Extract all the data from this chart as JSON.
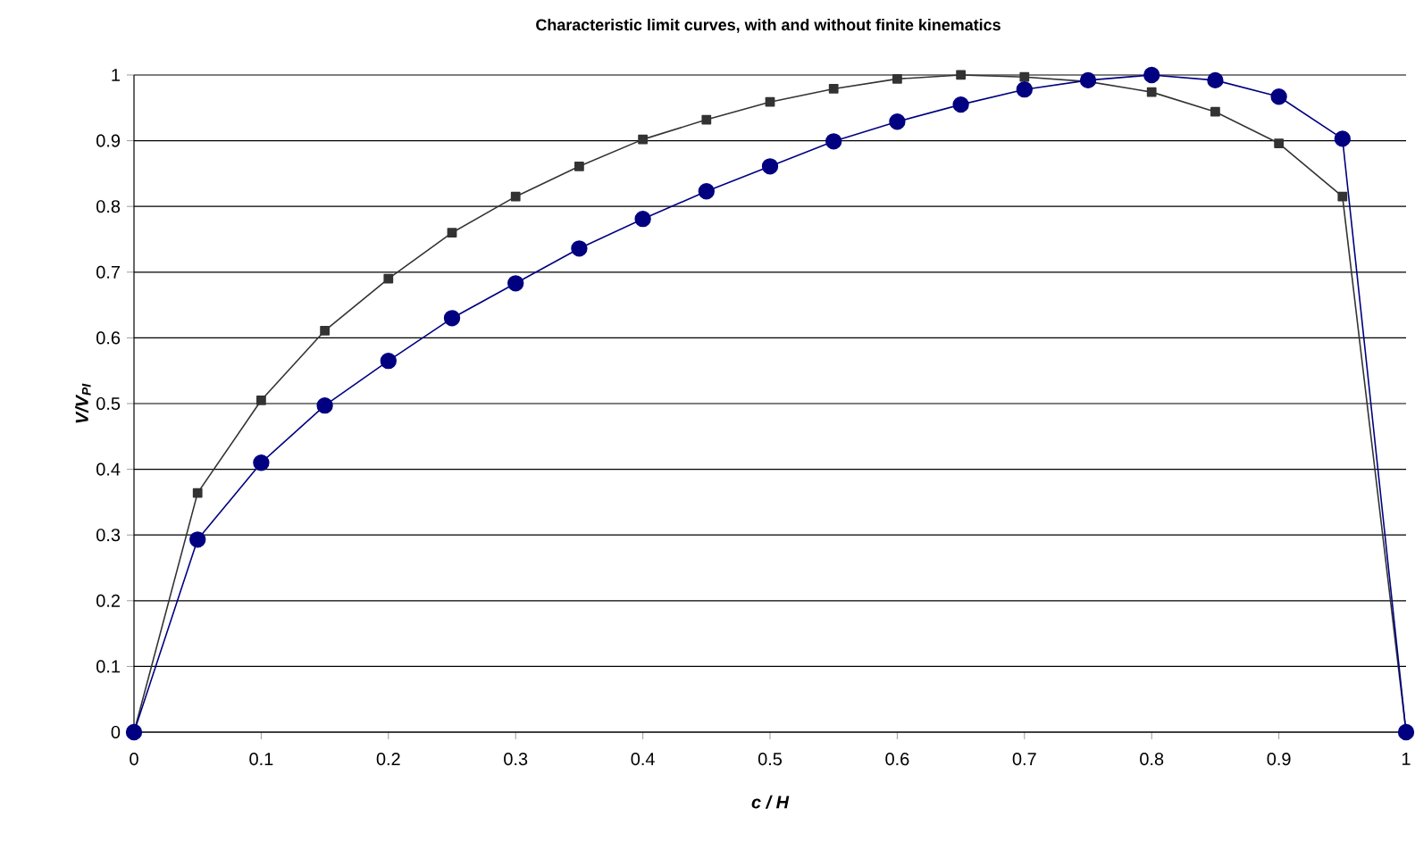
{
  "chart_data": {
    "type": "line",
    "title": "Characteristic limit curves, with and without finite kinematics",
    "xlabel": "c / H",
    "ylabel": "V/V$_{PI}$",
    "x": [
      0,
      0.05,
      0.1,
      0.15,
      0.2,
      0.25,
      0.3,
      0.35,
      0.4,
      0.45,
      0.5,
      0.55,
      0.6,
      0.65,
      0.7,
      0.75,
      0.8,
      0.85,
      0.9,
      0.95,
      1.0
    ],
    "series": [
      {
        "color": "#333333",
        "marker": "square",
        "values": [
          0,
          0.364,
          0.505,
          0.611,
          0.69,
          0.76,
          0.815,
          0.861,
          0.902,
          0.932,
          0.959,
          0.979,
          0.994,
          1.0,
          0.997,
          0.99,
          0.974,
          0.944,
          0.896,
          0.815,
          0
        ]
      },
      {
        "color": "#000080",
        "marker": "circle",
        "values": [
          0,
          0.293,
          0.41,
          0.497,
          0.565,
          0.63,
          0.683,
          0.736,
          0.781,
          0.823,
          0.861,
          0.899,
          0.929,
          0.955,
          0.978,
          0.992,
          1.0,
          0.992,
          0.967,
          0.903,
          0
        ]
      }
    ],
    "xlim": [
      0,
      1
    ],
    "xticks": [
      0,
      0.1,
      0.2,
      0.3,
      0.4,
      0.5,
      0.6,
      0.7,
      0.8,
      0.9,
      1
    ],
    "ylim": [
      0,
      1
    ],
    "yticks": [
      0,
      0.1,
      0.2,
      0.3,
      0.4,
      0.5,
      0.6,
      0.7,
      0.8,
      0.9,
      1
    ],
    "grid": "y",
    "line_style": "solid"
  }
}
